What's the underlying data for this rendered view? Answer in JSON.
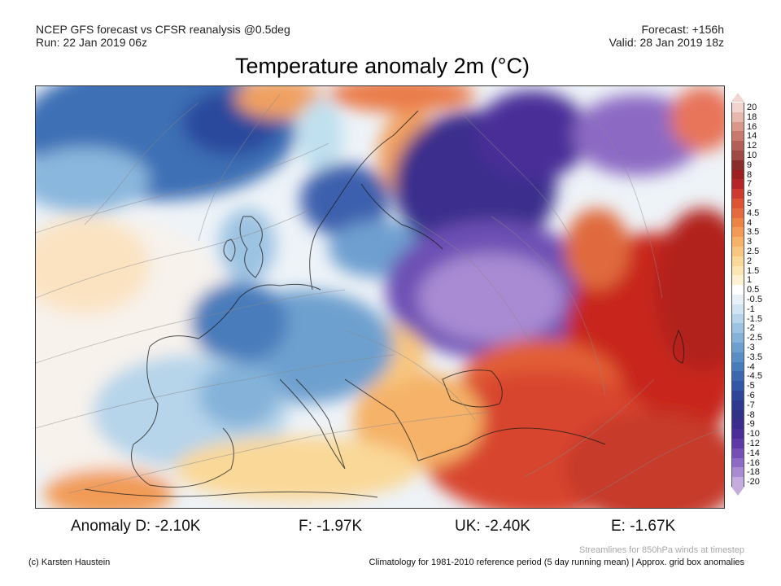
{
  "header": {
    "line1": "NCEP GFS forecast vs CFSR reanalysis @0.5deg",
    "line2": "Run: 22 Jan 2019 06z",
    "forecast": "Forecast: +156h",
    "valid": "Valid: 28 Jan 2019 18z"
  },
  "title": "Temperature anomaly 2m (°C)",
  "colorbar": {
    "labels": [
      "20",
      "18",
      "16",
      "14",
      "12",
      "10",
      "9",
      "8",
      "7",
      "6",
      "5",
      "4.5",
      "4",
      "3.5",
      "3",
      "2.5",
      "2",
      "1.5",
      "1",
      "0.5",
      "-0.5",
      "-1",
      "-1.5",
      "-2",
      "-2.5",
      "-3",
      "-3.5",
      "-4",
      "-4.5",
      "-5",
      "-6",
      "-7",
      "-8",
      "-9",
      "-10",
      "-12",
      "-14",
      "-16",
      "-18",
      "-20"
    ],
    "colors": [
      "#f3d5cf",
      "#e7b8ab",
      "#d99888",
      "#c87a6c",
      "#b45f55",
      "#a04a45",
      "#8a2e2b",
      "#9d1f1f",
      "#b52626",
      "#cc3b2e",
      "#dd5435",
      "#e56a3d",
      "#ec8446",
      "#f19b57",
      "#f5b268",
      "#f8c680",
      "#fad898",
      "#fce6b3",
      "#fef2d2",
      "#ffffff",
      "#e8f1f8",
      "#d0e4f1",
      "#b6d4ea",
      "#9cc3e2",
      "#84b2d9",
      "#6ea0cf",
      "#5a8ec5",
      "#4a7bbb",
      "#3d68b0",
      "#3358a5",
      "#2f4698",
      "#2e3a8f",
      "#303288",
      "#3a2d8c",
      "#4a2f98",
      "#5e3aa6",
      "#7450b5",
      "#8c6bc4",
      "#a88bd3",
      "#c4acdf"
    ]
  },
  "anomalies": [
    {
      "label": "Anomaly D: -2.10K"
    },
    {
      "label": "F: -1.97K"
    },
    {
      "label": "UK: -2.40K"
    },
    {
      "label": "E: -1.67K"
    }
  ],
  "footer": {
    "stream_note": "Streamlines for 850hPa winds at timestep",
    "credit": "(c) Karsten Haustein",
    "climatology": "Climatology for 1981-2010 reference period (5 day running mean) | Approx. grid box anomalies"
  }
}
